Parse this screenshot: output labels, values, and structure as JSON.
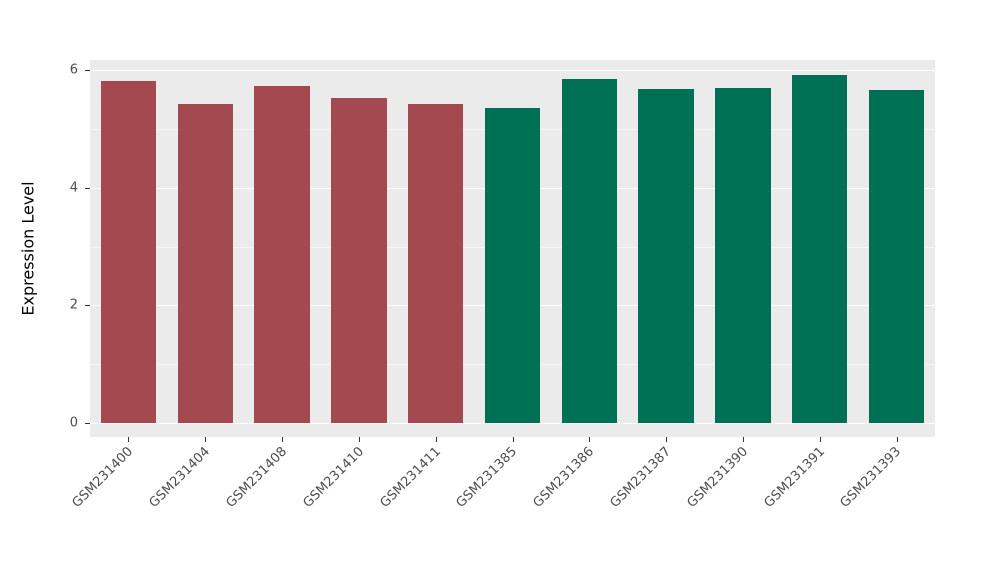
{
  "chart_data": {
    "type": "bar",
    "title": "",
    "xlabel": "",
    "ylabel": "Expression Level",
    "categories": [
      "GSM231400",
      "GSM231404",
      "GSM231408",
      "GSM231410",
      "GSM231411",
      "GSM231385",
      "GSM231386",
      "GSM231387",
      "GSM231390",
      "GSM231391",
      "GSM231393"
    ],
    "values": [
      5.82,
      5.42,
      5.73,
      5.52,
      5.42,
      5.36,
      5.85,
      5.68,
      5.7,
      5.91,
      5.66
    ],
    "bar_colors": [
      "#A4494F",
      "#A4494F",
      "#A4494F",
      "#A4494F",
      "#A4494F",
      "#007054",
      "#007054",
      "#007054",
      "#007054",
      "#007054",
      "#007054"
    ],
    "group_colors": {
      "group1": "#A4494F",
      "group2": "#007054"
    },
    "ylim": [
      0,
      6
    ],
    "yticks": [
      0,
      2,
      4,
      6
    ],
    "ytick_labels": [
      "0",
      "2",
      "4",
      "6"
    ],
    "yticks_minor": [
      1,
      3,
      5
    ],
    "panel_bg": "#EBEBEB",
    "grid_color": "#FFFFFF",
    "grid": "on",
    "legend": "none"
  }
}
